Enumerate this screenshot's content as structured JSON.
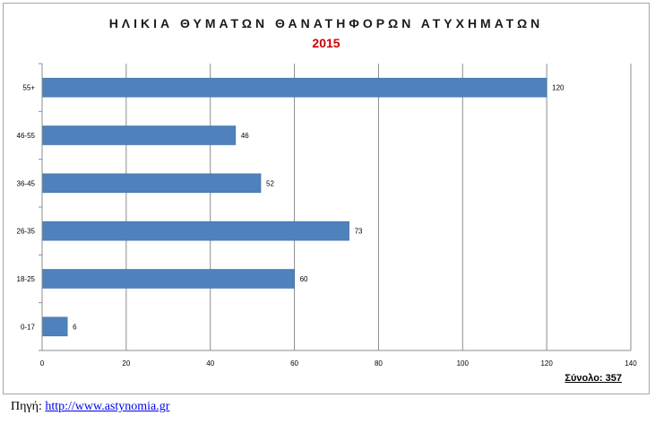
{
  "chart_data": {
    "type": "bar",
    "orientation": "horizontal",
    "title": "ΗΛΙΚΙΑ ΘΥΜΑΤΩΝ ΘΑΝΑΤΗΦΟΡΩΝ ΑΤΥΧΗΜΑΤΩΝ",
    "subtitle": "2015",
    "categories": [
      "55+",
      "46-55",
      "36-45",
      "26-35",
      "18-25",
      "0-17"
    ],
    "values": [
      120,
      46,
      52,
      73,
      60,
      6
    ],
    "xlim": [
      0,
      140
    ],
    "xticks": [
      0,
      20,
      40,
      60,
      80,
      100,
      120,
      140
    ],
    "grid": true,
    "bar_color": "#4f81bd",
    "title_color": "#1a1a1a",
    "subtitle_color": "#cc0000",
    "total_label": "Σύνολο: 357"
  },
  "source": {
    "label": "Πηγή:",
    "link_text": "http://www.astynomia.gr"
  }
}
